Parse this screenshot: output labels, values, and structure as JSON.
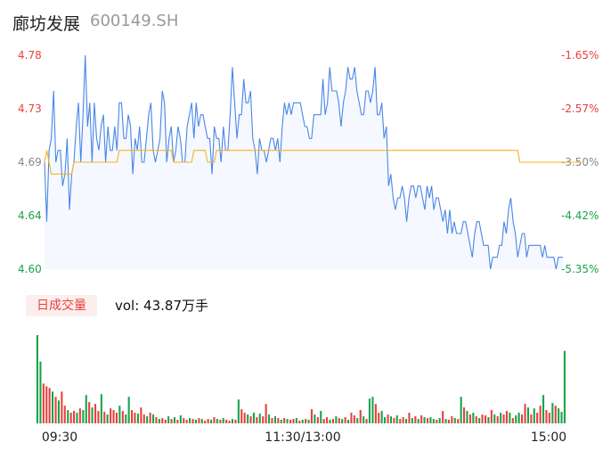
{
  "header": {
    "name": "廊坊发展",
    "code": "600149.SH"
  },
  "volume_panel": {
    "badge": "日成交量",
    "vol_text": "vol: 43.87万手"
  },
  "colors": {
    "price_line": "#4a86e8",
    "avg_line": "#f5b322",
    "up": "#e8413c",
    "down": "#1aa34a",
    "fill": "#f5f8fe"
  },
  "chart_data": [
    {
      "type": "line",
      "title": "",
      "ylim": [
        4.6,
        4.78
      ],
      "y_ticks_left": [
        "4.78",
        "4.73",
        "4.69",
        "4.64",
        "4.60"
      ],
      "y_ticks_right": [
        "-1.65%",
        "-2.57%",
        "-3.50%",
        "-4.42%",
        "-5.35%"
      ],
      "series": [
        {
          "name": "price",
          "values": [
            4.69,
            4.64,
            4.7,
            4.71,
            4.75,
            4.69,
            4.7,
            4.7,
            4.67,
            4.68,
            4.71,
            4.65,
            4.68,
            4.69,
            4.72,
            4.74,
            4.69,
            4.73,
            4.78,
            4.72,
            4.74,
            4.69,
            4.74,
            4.71,
            4.7,
            4.72,
            4.73,
            4.69,
            4.72,
            4.7,
            4.7,
            4.72,
            4.7,
            4.74,
            4.74,
            4.71,
            4.71,
            4.73,
            4.72,
            4.68,
            4.71,
            4.7,
            4.72,
            4.69,
            4.69,
            4.71,
            4.73,
            4.74,
            4.7,
            4.69,
            4.7,
            4.71,
            4.75,
            4.74,
            4.69,
            4.71,
            4.72,
            4.69,
            4.7,
            4.72,
            4.71,
            4.69,
            4.69,
            4.72,
            4.73,
            4.74,
            4.71,
            4.74,
            4.72,
            4.73,
            4.73,
            4.72,
            4.71,
            4.71,
            4.68,
            4.72,
            4.71,
            4.71,
            4.69,
            4.72,
            4.7,
            4.7,
            4.73,
            4.77,
            4.74,
            4.71,
            4.73,
            4.73,
            4.76,
            4.74,
            4.74,
            4.75,
            4.71,
            4.7,
            4.68,
            4.71,
            4.7,
            4.7,
            4.69,
            4.7,
            4.71,
            4.71,
            4.7,
            4.71,
            4.69,
            4.72,
            4.74,
            4.73,
            4.74,
            4.73,
            4.74,
            4.74,
            4.74,
            4.74,
            4.73,
            4.72,
            4.72,
            4.71,
            4.71,
            4.73,
            4.73,
            4.73,
            4.73,
            4.76,
            4.73,
            4.74,
            4.77,
            4.75,
            4.75,
            4.75,
            4.74,
            4.72,
            4.74,
            4.75,
            4.77,
            4.76,
            4.76,
            4.77,
            4.75,
            4.74,
            4.73,
            4.73,
            4.75,
            4.75,
            4.74,
            4.75,
            4.77,
            4.73,
            4.73,
            4.74,
            4.71,
            4.72,
            4.67,
            4.68,
            4.66,
            4.65,
            4.66,
            4.66,
            4.67,
            4.66,
            4.64,
            4.66,
            4.67,
            4.67,
            4.66,
            4.67,
            4.67,
            4.66,
            4.65,
            4.67,
            4.66,
            4.67,
            4.65,
            4.66,
            4.66,
            4.65,
            4.64,
            4.65,
            4.63,
            4.65,
            4.63,
            4.64,
            4.63,
            4.63,
            4.63,
            4.64,
            4.64,
            4.63,
            4.62,
            4.61,
            4.63,
            4.64,
            4.64,
            4.63,
            4.62,
            4.62,
            4.62,
            4.6,
            4.61,
            4.61,
            4.61,
            4.62,
            4.62,
            4.64,
            4.63,
            4.65,
            4.66,
            4.64,
            4.63,
            4.61,
            4.62,
            4.63,
            4.63,
            4.61,
            4.62,
            4.62,
            4.62,
            4.62,
            4.62,
            4.62,
            4.61,
            4.62,
            4.61,
            4.61,
            4.61,
            4.61,
            4.6,
            4.61,
            4.61,
            4.61
          ]
        },
        {
          "name": "avg",
          "values": [
            4.69,
            4.7,
            4.69,
            4.68,
            4.68,
            4.68,
            4.68,
            4.68,
            4.68,
            4.68,
            4.68,
            4.68,
            4.68,
            4.69,
            4.69,
            4.69,
            4.69,
            4.69,
            4.69,
            4.69,
            4.69,
            4.69,
            4.69,
            4.69,
            4.69,
            4.69,
            4.69,
            4.69,
            4.69,
            4.69,
            4.69,
            4.69,
            4.69,
            4.7,
            4.7,
            4.7,
            4.7,
            4.7,
            4.7,
            4.7,
            4.7,
            4.7,
            4.7,
            4.7,
            4.7,
            4.7,
            4.7,
            4.7,
            4.7,
            4.7,
            4.7,
            4.7,
            4.7,
            4.7,
            4.7,
            4.7,
            4.7,
            4.69,
            4.69,
            4.69,
            4.69,
            4.69,
            4.69,
            4.69,
            4.69,
            4.69,
            4.7,
            4.7,
            4.7,
            4.7,
            4.7,
            4.7,
            4.69,
            4.69,
            4.69,
            4.69,
            4.7,
            4.7,
            4.7,
            4.7,
            4.7,
            4.7,
            4.7,
            4.7,
            4.7,
            4.7,
            4.7,
            4.7,
            4.7,
            4.7,
            4.7,
            4.7,
            4.7,
            4.7,
            4.7,
            4.7,
            4.7,
            4.7,
            4.7,
            4.7,
            4.7,
            4.7,
            4.7,
            4.7,
            4.7,
            4.7,
            4.7,
            4.7,
            4.7,
            4.7,
            4.7,
            4.7,
            4.7,
            4.7,
            4.7,
            4.7,
            4.7,
            4.7,
            4.7,
            4.7,
            4.7,
            4.7,
            4.7,
            4.7,
            4.7,
            4.7,
            4.7,
            4.7,
            4.7,
            4.7,
            4.7,
            4.7,
            4.7,
            4.7,
            4.7,
            4.7,
            4.7,
            4.7,
            4.7,
            4.7,
            4.7,
            4.7,
            4.7,
            4.7,
            4.7,
            4.7,
            4.7,
            4.7,
            4.7,
            4.7,
            4.7,
            4.7,
            4.7,
            4.7,
            4.7,
            4.7,
            4.7,
            4.7,
            4.7,
            4.7,
            4.7,
            4.7,
            4.7,
            4.7,
            4.7,
            4.7,
            4.7,
            4.7,
            4.7,
            4.7,
            4.7,
            4.7,
            4.7,
            4.7,
            4.7,
            4.7,
            4.7,
            4.7,
            4.7,
            4.7,
            4.7,
            4.7,
            4.7,
            4.7,
            4.7,
            4.7,
            4.7,
            4.7,
            4.7,
            4.7,
            4.7,
            4.7,
            4.7,
            4.7,
            4.7,
            4.7,
            4.7,
            4.7,
            4.7,
            4.7,
            4.7,
            4.7,
            4.7,
            4.7,
            4.7,
            4.7,
            4.7,
            4.7,
            4.7,
            4.7,
            4.69,
            4.69,
            4.69,
            4.69,
            4.69,
            4.69,
            4.69,
            4.69,
            4.69,
            4.69,
            4.69,
            4.69,
            4.69,
            4.69,
            4.69,
            4.69,
            4.69,
            4.69,
            4.69,
            4.69,
            4.69,
            4.69,
            4.69,
            4.69,
            4.69,
            4.69,
            4.69,
            4.69
          ]
        }
      ]
    },
    {
      "type": "bar",
      "title": "",
      "x_ticks": [
        "09:30",
        "11:30/13:00",
        "15:00"
      ],
      "values": [
        1.0,
        0.7,
        0.45,
        0.42,
        0.4,
        0.36,
        0.3,
        0.26,
        0.36,
        0.2,
        0.15,
        0.12,
        0.14,
        0.12,
        0.17,
        0.15,
        0.32,
        0.24,
        0.18,
        0.22,
        0.14,
        0.33,
        0.13,
        0.1,
        0.17,
        0.15,
        0.12,
        0.2,
        0.14,
        0.1,
        0.3,
        0.15,
        0.12,
        0.11,
        0.18,
        0.1,
        0.08,
        0.12,
        0.1,
        0.07,
        0.05,
        0.06,
        0.04,
        0.08,
        0.05,
        0.07,
        0.04,
        0.09,
        0.06,
        0.04,
        0.06,
        0.05,
        0.04,
        0.06,
        0.05,
        0.03,
        0.05,
        0.04,
        0.07,
        0.05,
        0.04,
        0.06,
        0.04,
        0.03,
        0.05,
        0.04,
        0.27,
        0.16,
        0.12,
        0.1,
        0.08,
        0.12,
        0.07,
        0.11,
        0.08,
        0.22,
        0.1,
        0.06,
        0.08,
        0.06,
        0.04,
        0.06,
        0.05,
        0.04,
        0.05,
        0.06,
        0.03,
        0.04,
        0.05,
        0.04,
        0.16,
        0.1,
        0.07,
        0.14,
        0.05,
        0.07,
        0.04,
        0.05,
        0.08,
        0.06,
        0.05,
        0.07,
        0.04,
        0.12,
        0.09,
        0.06,
        0.15,
        0.08,
        0.05,
        0.28,
        0.3,
        0.22,
        0.12,
        0.14,
        0.07,
        0.1,
        0.08,
        0.06,
        0.09,
        0.05,
        0.07,
        0.05,
        0.12,
        0.06,
        0.08,
        0.05,
        0.09,
        0.07,
        0.06,
        0.07,
        0.05,
        0.04,
        0.06,
        0.14,
        0.05,
        0.04,
        0.08,
        0.06,
        0.05,
        0.3,
        0.18,
        0.14,
        0.1,
        0.12,
        0.08,
        0.06,
        0.1,
        0.09,
        0.07,
        0.15,
        0.1,
        0.08,
        0.12,
        0.1,
        0.14,
        0.12,
        0.06,
        0.09,
        0.12,
        0.1,
        0.22,
        0.18,
        0.1,
        0.17,
        0.12,
        0.2,
        0.32,
        0.15,
        0.12,
        0.23,
        0.2,
        0.17,
        0.13,
        0.82
      ],
      "up_down": [
        "d",
        "d",
        "u",
        "u",
        "u",
        "d",
        "u",
        "d",
        "u",
        "u",
        "d",
        "u",
        "u",
        "d",
        "u",
        "d",
        "d",
        "u",
        "d",
        "u",
        "u",
        "d",
        "u",
        "d",
        "u",
        "u",
        "u",
        "d",
        "u",
        "d",
        "d",
        "u",
        "u",
        "d",
        "u",
        "u",
        "d",
        "u",
        "d",
        "u",
        "d",
        "u",
        "u",
        "d",
        "u",
        "d",
        "u",
        "d",
        "u",
        "u",
        "d",
        "u",
        "d",
        "u",
        "d",
        "u",
        "u",
        "d",
        "u",
        "d",
        "u",
        "d",
        "u",
        "u",
        "d",
        "u",
        "d",
        "u",
        "u",
        "d",
        "u",
        "d",
        "u",
        "d",
        "u",
        "u",
        "d",
        "u",
        "d",
        "u",
        "d",
        "u",
        "d",
        "u",
        "u",
        "d",
        "u",
        "d",
        "u",
        "d",
        "u",
        "d",
        "u",
        "d",
        "u",
        "u",
        "d",
        "u",
        "d",
        "u",
        "d",
        "u",
        "d",
        "u",
        "u",
        "d",
        "u",
        "d",
        "u",
        "d",
        "d",
        "u",
        "u",
        "d",
        "d",
        "u",
        "d",
        "u",
        "d",
        "u",
        "u",
        "d",
        "u",
        "d",
        "u",
        "d",
        "u",
        "d",
        "u",
        "d",
        "d",
        "u",
        "d",
        "u",
        "d",
        "u",
        "u",
        "d",
        "u",
        "d",
        "u",
        "d",
        "u",
        "d",
        "u",
        "d",
        "u",
        "u",
        "d",
        "u",
        "d",
        "u",
        "d",
        "u",
        "u",
        "d",
        "u",
        "d",
        "d",
        "u",
        "u",
        "d",
        "u",
        "d",
        "u",
        "u",
        "d",
        "u",
        "u",
        "d",
        "u"
      ]
    }
  ]
}
